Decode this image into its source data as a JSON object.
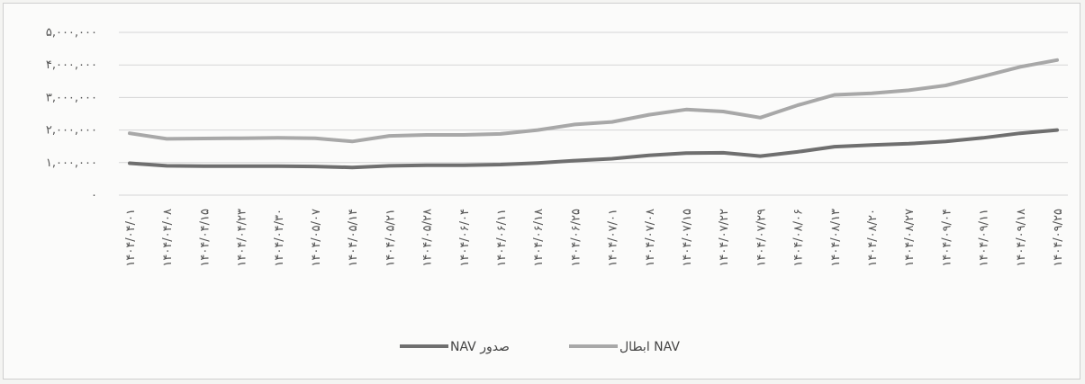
{
  "chart_data": {
    "type": "line",
    "title": "",
    "xlabel": "",
    "ylabel": "",
    "ylim": [
      0,
      5000000
    ],
    "y_ticks": [
      "۰",
      "۱,۰۰۰,۰۰۰",
      "۲,۰۰۰,۰۰۰",
      "۳,۰۰۰,۰۰۰",
      "۴,۰۰۰,۰۰۰",
      "۵,۰۰۰,۰۰۰"
    ],
    "y_tick_values": [
      0,
      1000000,
      2000000,
      3000000,
      4000000,
      5000000
    ],
    "grid": true,
    "legend_position": "bottom",
    "categories": [
      "۱۴۰۴/۰۴/۰۱",
      "۱۴۰۴/۰۴/۰۸",
      "۱۴۰۴/۰۴/۱۵",
      "۱۴۰۴/۰۴/۲۳",
      "۱۴۰۴/۰۴/۳۰",
      "۱۴۰۴/۰۵/۰۷",
      "۱۴۰۴/۰۵/۱۴",
      "۱۴۰۴/۰۵/۲۱",
      "۱۴۰۴/۰۵/۲۸",
      "۱۴۰۴/۰۶/۰۴",
      "۱۴۰۴/۰۶/۱۱",
      "۱۴۰۴/۰۶/۱۸",
      "۱۴۰۴/۰۶/۲۵",
      "۱۴۰۴/۰۷/۰۱",
      "۱۴۰۴/۰۷/۰۸",
      "۱۴۰۴/۰۷/۱۵",
      "۱۴۰۴/۰۷/۲۲",
      "۱۴۰۴/۰۷/۲۹",
      "۱۴۰۴/۰۸/۰۶",
      "۱۴۰۴/۰۸/۱۳",
      "۱۴۰۴/۰۸/۲۰",
      "۱۴۰۴/۰۸/۲۷",
      "۱۴۰۴/۰۹/۰۴",
      "۱۴۰۴/۰۹/۱۱",
      "۱۴۰۴/۰۹/۱۸",
      "۱۴۰۴/۰۹/۲۵"
    ],
    "series": [
      {
        "name": "NAV صدور",
        "color": "#6f6f6f",
        "values": [
          980000,
          900000,
          890000,
          890000,
          890000,
          880000,
          850000,
          900000,
          920000,
          920000,
          940000,
          990000,
          1060000,
          1120000,
          1220000,
          1290000,
          1300000,
          1200000,
          1330000,
          1490000,
          1540000,
          1580000,
          1650000,
          1760000,
          1900000,
          2000000
        ]
      },
      {
        "name": "ابطال NAV",
        "color": "#a8a8a8",
        "values": [
          1900000,
          1730000,
          1740000,
          1750000,
          1760000,
          1750000,
          1650000,
          1820000,
          1850000,
          1850000,
          1880000,
          2000000,
          2170000,
          2250000,
          2470000,
          2630000,
          2570000,
          2380000,
          2760000,
          3080000,
          3130000,
          3220000,
          3370000,
          3650000,
          3940000,
          4150000
        ]
      }
    ]
  }
}
